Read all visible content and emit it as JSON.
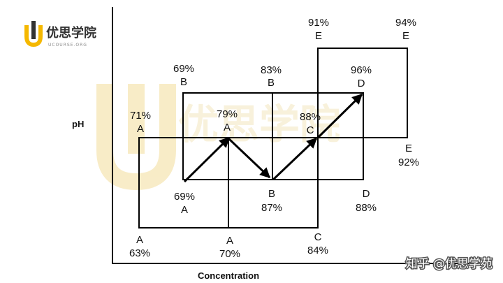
{
  "logo": {
    "name": "优思学院",
    "sub": "UCOURSE.ORG"
  },
  "watermark": {
    "text": "优思学院"
  },
  "axes": {
    "y_title": "pH",
    "x_title": "Concentration"
  },
  "credit": {
    "text": "知乎 @优思学苑"
  },
  "labels": [
    {
      "id": "label-a-71",
      "pct": "71%",
      "letter": "A"
    },
    {
      "id": "label-a-79",
      "pct": "79%",
      "letter": "A"
    },
    {
      "id": "label-a-69",
      "pct": "69%",
      "letter": "A"
    },
    {
      "id": "label-a-63",
      "pct": "63%",
      "letter": "A"
    },
    {
      "id": "label-a-70",
      "pct": "70%",
      "letter": "A"
    },
    {
      "id": "label-b-69",
      "pct": "69%",
      "letter": "B"
    },
    {
      "id": "label-b-83",
      "pct": "83%",
      "letter": "B"
    },
    {
      "id": "label-b-87",
      "pct": "87%",
      "letter": "B"
    },
    {
      "id": "label-c-88",
      "pct": "88%",
      "letter": "C"
    },
    {
      "id": "label-c-84",
      "pct": "84%",
      "letter": "C"
    },
    {
      "id": "label-d-96",
      "pct": "96%",
      "letter": "D"
    },
    {
      "id": "label-d-88",
      "pct": "88%",
      "letter": "D"
    },
    {
      "id": "label-e-91",
      "pct": "91%",
      "letter": "E"
    },
    {
      "id": "label-e-94",
      "pct": "94%",
      "letter": "E"
    },
    {
      "id": "label-e-92",
      "pct": "92%",
      "letter": "E"
    }
  ]
}
